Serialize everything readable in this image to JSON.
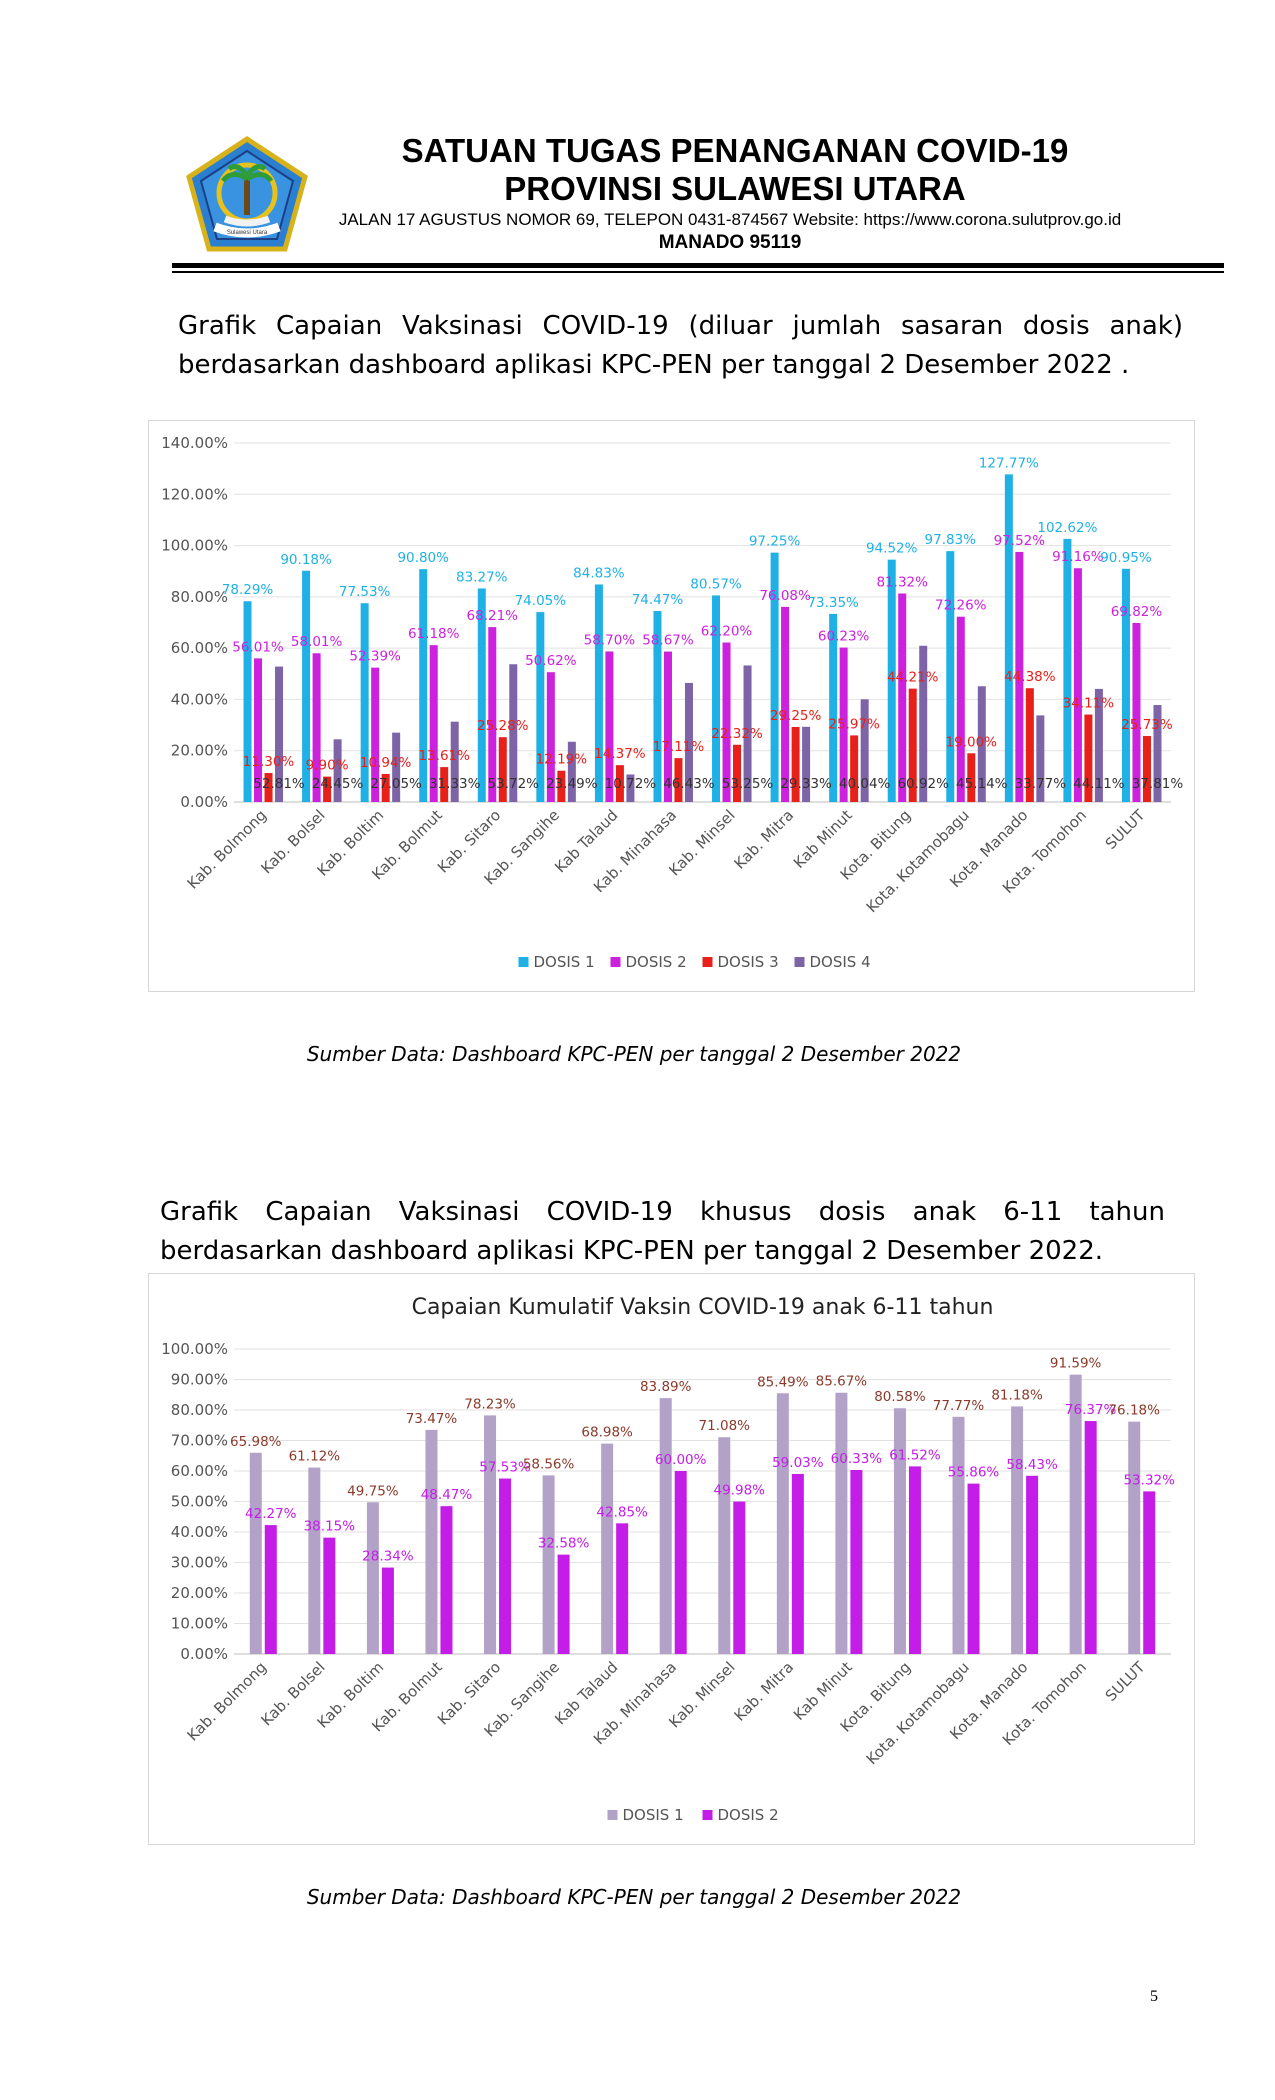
{
  "header": {
    "org_line1": "SATUAN TUGAS PENANGANAN COVID-19",
    "org_line2": "PROVINSI SULAWESI UTARA",
    "address": "JALAN 17 AGUSTUS NOMOR 69, TELEPON 0431-874567 Website: https://www.corona.sulutprov.go.id",
    "city": "MANADO  95119",
    "logo_icon": "provincial-emblem-icon",
    "logo_ribbon_text": "Sulawesi Utara"
  },
  "section1": {
    "intro": "Grafik Capaian Vaksinasi COVID-19 (diluar jumlah sasaran dosis anak) berdasarkan dashboard aplikasi KPC-PEN per tanggal 2 Desember 2022 .",
    "source": "Sumber Data: Dashboard KPC-PEN per tanggal 2 Desember 2022"
  },
  "section2": {
    "intro": "Grafik Capaian Vaksinasi COVID-19 khusus dosis anak 6-11 tahun berdasarkan dashboard aplikasi KPC-PEN per tanggal 2 Desember 2022.",
    "source": "Sumber Data: Dashboard KPC-PEN per tanggal 2 Desember 2022"
  },
  "page_number": "5",
  "chart_data": [
    {
      "type": "bar",
      "title": "",
      "xlabel": "",
      "ylabel": "",
      "ylim": [
        0,
        140
      ],
      "yticks": [
        "0.00%",
        "20.00%",
        "40.00%",
        "60.00%",
        "80.00%",
        "100.00%",
        "120.00%",
        "140.00%"
      ],
      "grid": true,
      "legend": "bottom",
      "categories": [
        "Kab. Bolmong",
        "Kab. Bolsel",
        "Kab. Boltim",
        "Kab. Bolmut",
        "Kab. Sitaro",
        "Kab. Sangihe",
        "Kab Talaud",
        "Kab. Minahasa",
        "Kab. Minsel",
        "Kab. Mitra",
        "Kab Minut",
        "Kota. Bitung",
        "Kota. Kotamobagu",
        "Kota. Manado",
        "Kota. Tomohon",
        "SULUT"
      ],
      "series": [
        {
          "name": "DOSIS 1",
          "color": "#1fb1e6",
          "label_color": "#1fb1e6",
          "values": [
            78.29,
            90.18,
            77.53,
            90.8,
            83.27,
            74.05,
            84.83,
            74.47,
            80.57,
            97.25,
            73.35,
            94.52,
            97.83,
            127.77,
            102.62,
            90.95
          ],
          "labels": [
            "78.29%",
            "90.18%",
            "77.53%",
            "90.80%",
            "83.27%",
            "74.05%",
            "84.83%",
            "74.47%",
            "80.57%",
            "97.25%",
            "73.35%",
            "94.52%",
            "97.83%",
            "127.77%",
            "102.62%",
            "90.95%"
          ]
        },
        {
          "name": "DOSIS 2",
          "color": "#cc22dd",
          "label_color": "#cc22dd",
          "values": [
            56.01,
            58.01,
            52.39,
            61.18,
            68.21,
            50.62,
            58.7,
            58.67,
            62.2,
            76.08,
            60.23,
            81.32,
            72.26,
            97.52,
            91.16,
            69.82
          ],
          "labels": [
            "56.01%",
            "58.01%",
            "52.39%",
            "61.18%",
            "68.21%",
            "50.62%",
            "58.70%",
            "58.67%",
            "62.20%",
            "76.08%",
            "60.23%",
            "81.32%",
            "72.26%",
            "97.52%",
            "91.16%",
            "69.82%"
          ]
        },
        {
          "name": "DOSIS 3",
          "color": "#e8201a",
          "label_color": "#e8201a",
          "values": [
            11.3,
            9.9,
            10.94,
            13.61,
            25.28,
            12.19,
            14.37,
            17.11,
            22.32,
            29.25,
            25.97,
            44.21,
            19.0,
            44.38,
            34.11,
            25.73
          ],
          "labels": [
            "11.30%",
            "9.90%",
            "10.94%",
            "13.61%",
            "25.28%",
            "12.19%",
            "14.37%",
            "17.11%",
            "22.32%",
            "29.25%",
            "25.97%",
            "44.21%",
            "19.00%",
            "44.38%",
            "34.11%",
            "25.73%"
          ]
        },
        {
          "name": "DOSIS 4",
          "color": "#7d64a6",
          "label_color": "#333333",
          "values": [
            52.81,
            24.45,
            27.05,
            31.33,
            53.72,
            23.49,
            10.72,
            46.43,
            53.25,
            29.33,
            40.04,
            60.92,
            45.14,
            33.77,
            44.11,
            37.81
          ],
          "labels": [
            "52.81%",
            "24.45%",
            "27.05%",
            "31.33%",
            "53.72%",
            "23.49%",
            "10.72%",
            "46.43%",
            "53.25%",
            "29.33%",
            "40.04%",
            "60.92%",
            "45.14%",
            "33.77%",
            "44.11%",
            "37.81%"
          ]
        }
      ]
    },
    {
      "type": "bar",
      "title": "Capaian Kumulatif Vaksin COVID-19 anak 6-11 tahun",
      "xlabel": "",
      "ylabel": "",
      "ylim": [
        0,
        100
      ],
      "yticks": [
        "0.00%",
        "10.00%",
        "20.00%",
        "30.00%",
        "40.00%",
        "50.00%",
        "60.00%",
        "70.00%",
        "80.00%",
        "90.00%",
        "100.00%"
      ],
      "grid": true,
      "legend": "bottom",
      "categories": [
        "Kab. Bolmong",
        "Kab. Bolsel",
        "Kab. Boltim",
        "Kab. Bolmut",
        "Kab. Sitaro",
        "Kab. Sangihe",
        "Kab Talaud",
        "Kab. Minahasa",
        "Kab. Minsel",
        "Kab. Mitra",
        "Kab Minut",
        "Kota. Bitung",
        "Kota. Kotamobagu",
        "Kota. Manado",
        "Kota. Tomohon",
        "SULUT"
      ],
      "series": [
        {
          "name": "DOSIS 1",
          "color": "#b3a2c8",
          "label_color": "#8b3a2a",
          "values": [
            65.98,
            61.12,
            49.75,
            73.47,
            78.23,
            58.56,
            68.98,
            83.89,
            71.08,
            85.49,
            85.67,
            80.58,
            77.77,
            81.18,
            91.59,
            76.18
          ],
          "labels": [
            "65.98%",
            "61.12%",
            "49.75%",
            "73.47%",
            "78.23%",
            "58.56%",
            "68.98%",
            "83.89%",
            "71.08%",
            "85.49%",
            "85.67%",
            "80.58%",
            "77.77%",
            "81.18%",
            "91.59%",
            "76.18%"
          ]
        },
        {
          "name": "DOSIS 2",
          "color": "#c41de8",
          "label_color": "#c41de8",
          "values": [
            42.27,
            38.15,
            28.34,
            48.47,
            57.53,
            32.58,
            42.85,
            60.0,
            49.98,
            59.03,
            60.33,
            61.52,
            55.86,
            58.43,
            76.37,
            53.32
          ],
          "labels": [
            "42.27%",
            "38.15%",
            "28.34%",
            "48.47%",
            "57.53%",
            "32.58%",
            "42.85%",
            "60.00%",
            "49.98%",
            "59.03%",
            "60.33%",
            "61.52%",
            "55.86%",
            "58.43%",
            "76.37%",
            "53.32%"
          ]
        }
      ]
    }
  ]
}
